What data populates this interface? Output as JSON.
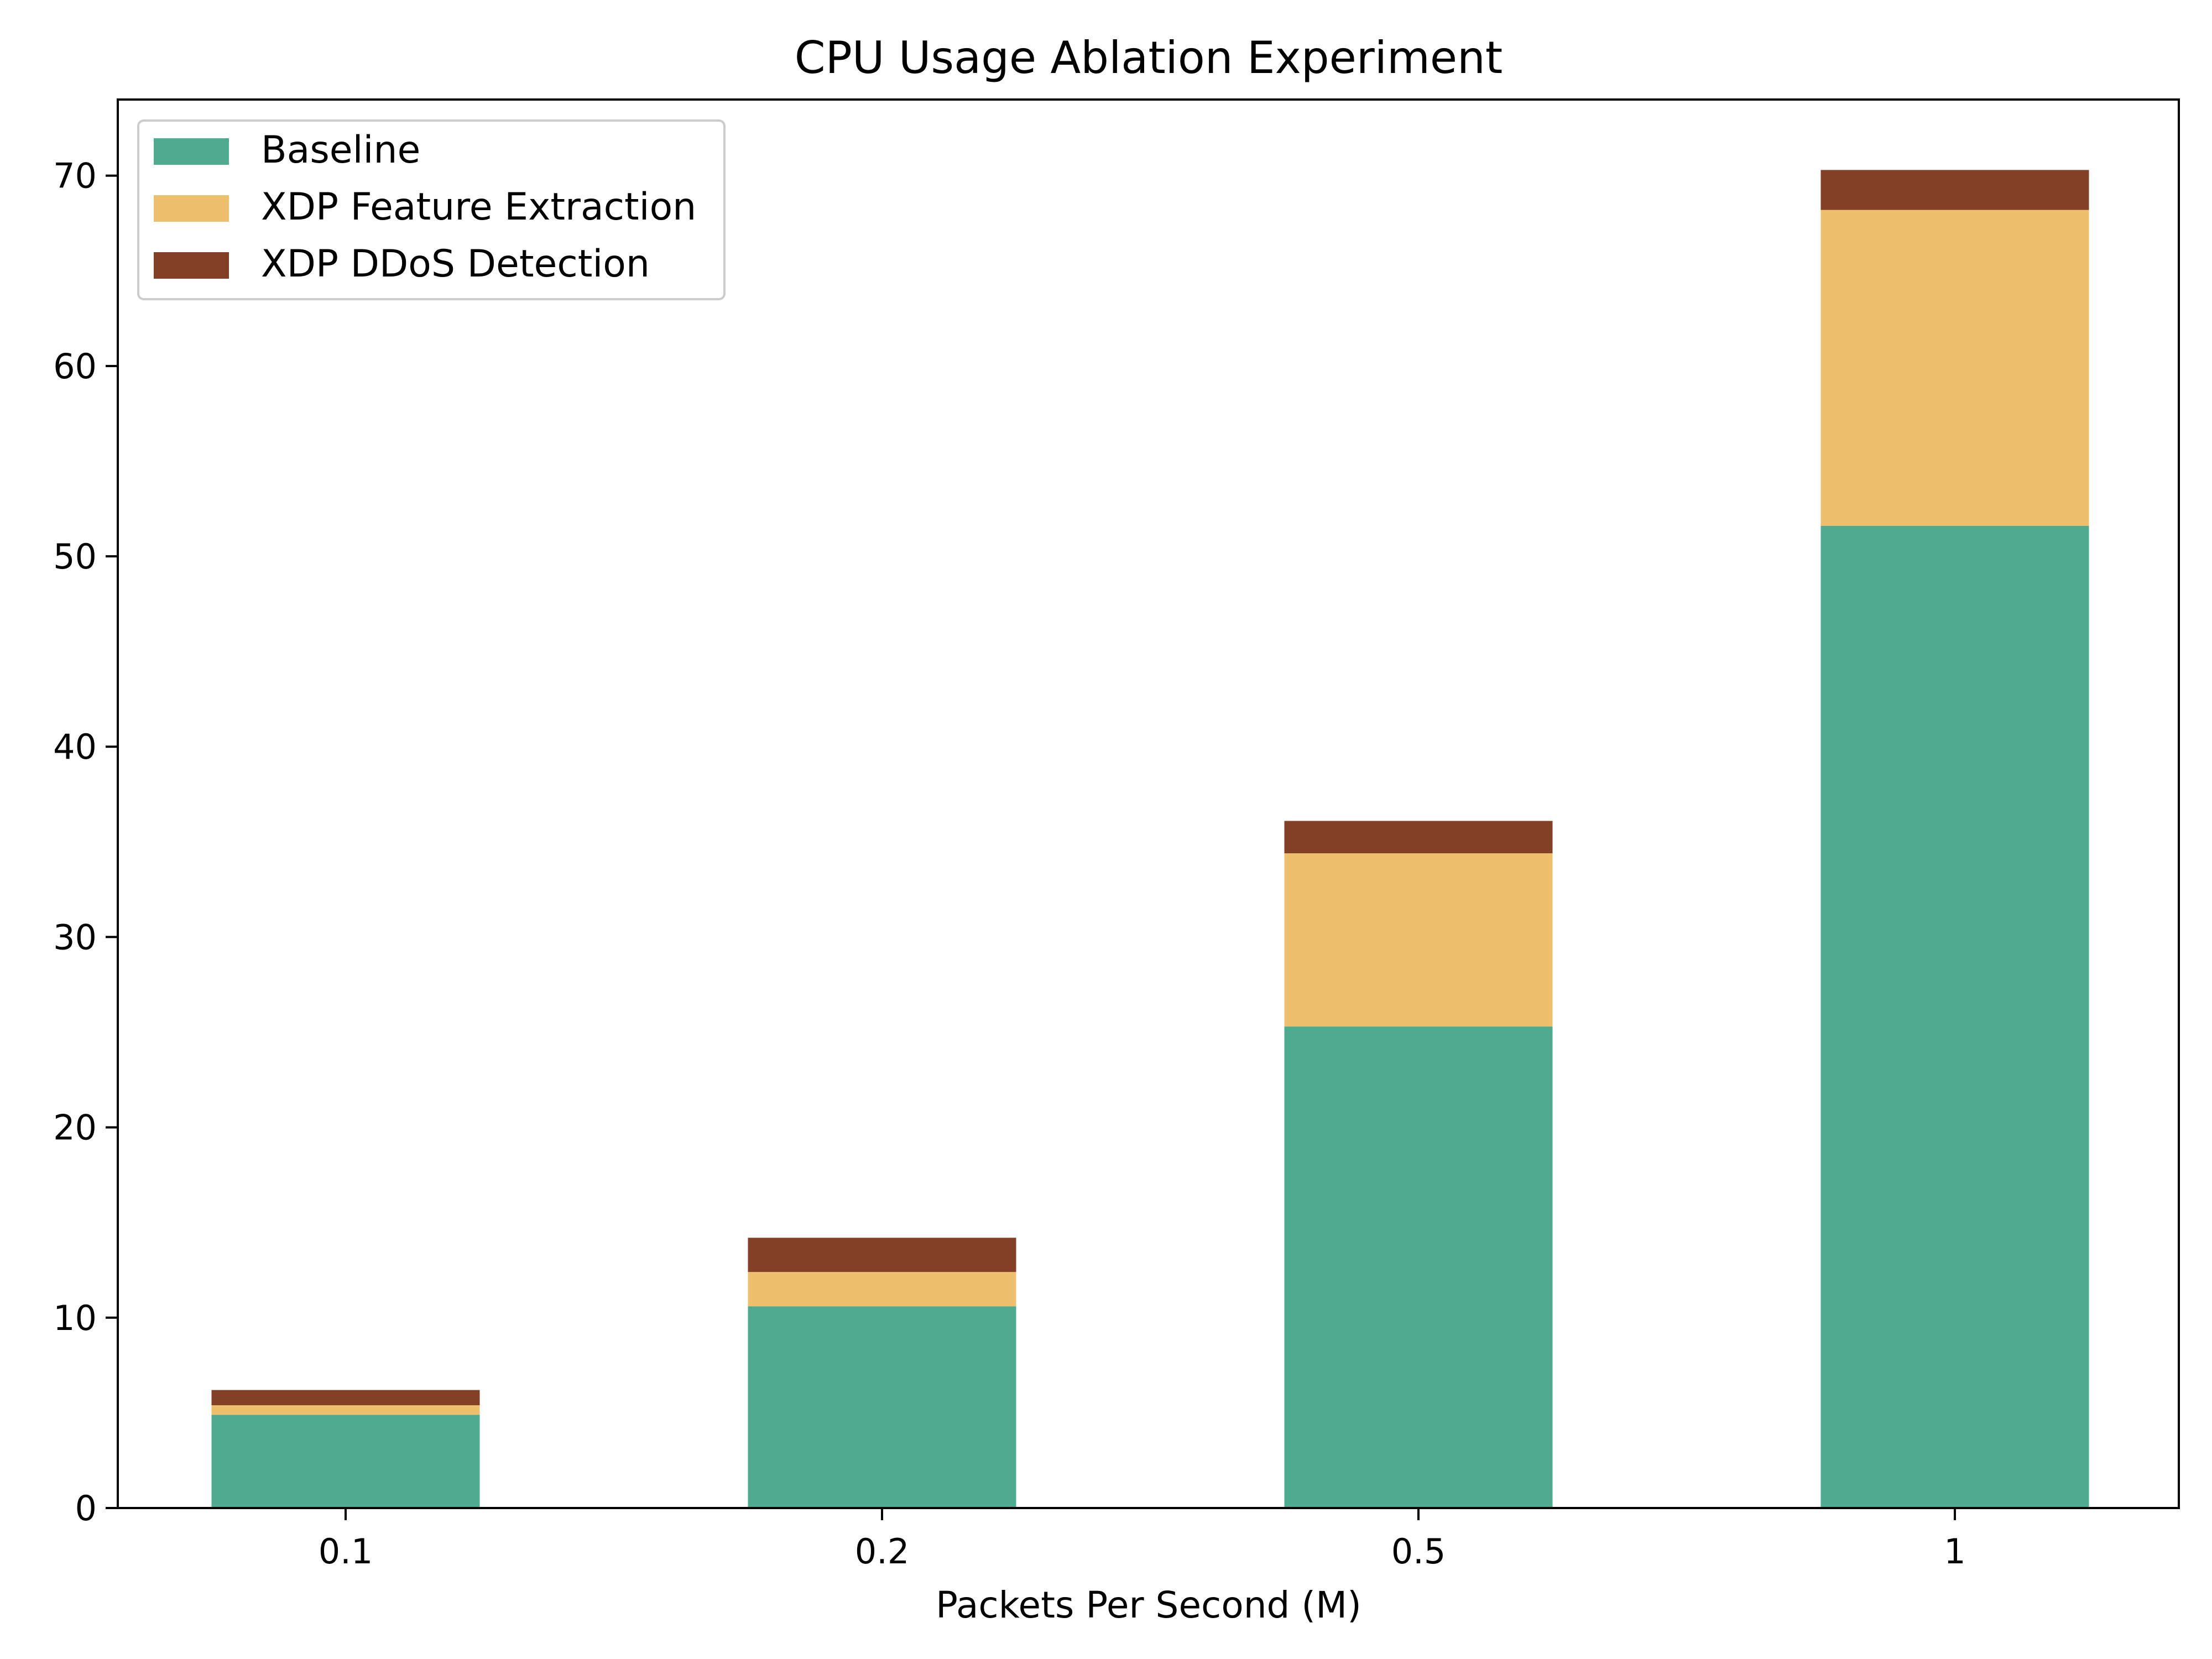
{
  "chart_data": {
    "type": "bar",
    "stacked": true,
    "title": "CPU Usage Ablation Experiment",
    "xlabel": "Packets Per Second (M)",
    "ylabel": "",
    "categories": [
      "0.1",
      "0.2",
      "0.5",
      "1"
    ],
    "ylim": [
      0,
      74
    ],
    "yticks": [
      "0",
      "10",
      "20",
      "30",
      "40",
      "50",
      "60",
      "70"
    ],
    "grid": false,
    "legend_position": "top-left",
    "series": [
      {
        "name": "Baseline",
        "color": "#4fab8f",
        "values": [
          4.9,
          10.6,
          25.3,
          51.6
        ]
      },
      {
        "name": "XDP Feature Extraction",
        "color": "#eec06d",
        "values": [
          0.5,
          1.8,
          9.1,
          16.6
        ]
      },
      {
        "name": "XDP DDoS Detection",
        "color": "#843f27",
        "values": [
          0.8,
          1.8,
          1.7,
          2.1
        ]
      }
    ]
  }
}
